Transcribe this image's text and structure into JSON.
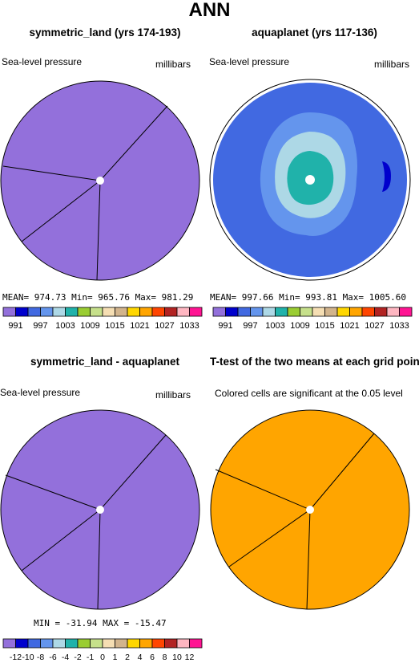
{
  "title": "ANN",
  "panels": [
    {
      "title": "symmetric_land (yrs 174-193)",
      "left_label": "Sea-level pressure",
      "right_label": "millibars",
      "stats": "MEAN= 974.73   Min= 965.76   Max= 981.29"
    },
    {
      "title": "aquaplanet (yrs 117-136)",
      "left_label": "Sea-level pressure",
      "right_label": "millibars",
      "stats": "MEAN= 997.66   Min= 993.81   Max= 1005.60"
    },
    {
      "title": "symmetric_land - aquaplanet",
      "left_label": "Sea-level pressure",
      "right_label": "millibars",
      "stats": "MIN = -31.94  MAX = -15.47"
    },
    {
      "title": "T-test of the two means at each grid point",
      "left_label": "Colored cells are significant at the 0.05 level"
    }
  ],
  "colors": {
    "lavender": "#9370DB",
    "orange": "#FFA500",
    "aqua_outer": "#4169E1",
    "aqua_mid": "#6495ED",
    "aqua_light": "#ADD8E6",
    "aqua_core": "#20B2AA",
    "aqua_dark": "#0000CD"
  },
  "colorbar": {
    "colors": [
      "#9370DB",
      "#0000CD",
      "#4169E1",
      "#6495ED",
      "#ADD8E6",
      "#20B2AA",
      "#9ACD32",
      "#C6E08B",
      "#F5DEB3",
      "#D2B48C",
      "#FFD700",
      "#FFA500",
      "#FF4500",
      "#B22222",
      "#FFB6C1",
      "#FF1493"
    ],
    "pressure_labels": [
      "991",
      "997",
      "1003",
      "1009",
      "1015",
      "1021",
      "1027",
      "1033"
    ],
    "diff_labels": [
      "-12",
      "-10",
      "-8",
      "-6",
      "-4",
      "-2",
      "-1",
      "0",
      "1",
      "2",
      "4",
      "6",
      "8",
      "10",
      "12"
    ]
  },
  "chart_data": [
    {
      "type": "heatmap",
      "title": "symmetric_land (yrs 174-193)",
      "variable": "Sea-level pressure",
      "units": "millibars",
      "projection": "polar",
      "mean": 974.73,
      "min": 965.76,
      "max": 981.29,
      "colorbar_levels": [
        991,
        994,
        997,
        1000,
        1003,
        1006,
        1009,
        1012,
        1015,
        1018,
        1021,
        1024,
        1027,
        1030,
        1033
      ],
      "field": "uniform below lowest level (lavender)"
    },
    {
      "type": "heatmap",
      "title": "aquaplanet (yrs 117-136)",
      "variable": "Sea-level pressure",
      "units": "millibars",
      "projection": "polar",
      "mean": 997.66,
      "min": 993.81,
      "max": 1005.6,
      "colorbar_levels": [
        991,
        994,
        997,
        1000,
        1003,
        1006,
        1009,
        1012,
        1015,
        1018,
        1021,
        1024,
        1027,
        1030,
        1033
      ],
      "field": "concentric rings increasing toward pole"
    },
    {
      "type": "heatmap",
      "title": "symmetric_land - aquaplanet",
      "variable": "Sea-level pressure",
      "units": "millibars",
      "projection": "polar",
      "min": -31.94,
      "max": -15.47,
      "colorbar_levels": [
        -12,
        -10,
        -8,
        -6,
        -4,
        -2,
        -1,
        0,
        1,
        2,
        4,
        6,
        8,
        10,
        12
      ],
      "field": "uniform below lowest level (lavender)"
    },
    {
      "type": "heatmap",
      "title": "T-test of the two means at each grid point",
      "projection": "polar",
      "field": "all cells significant (orange)"
    }
  ]
}
